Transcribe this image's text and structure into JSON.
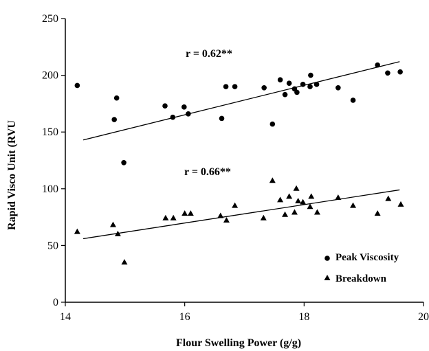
{
  "chart_data": {
    "type": "scatter",
    "title": "",
    "xlabel": "Flour Swelling Power (g/g)",
    "ylabel": "Rapid Visco Unit (RVU",
    "xlim": [
      14,
      20
    ],
    "ylim": [
      0,
      250
    ],
    "x_ticks": [
      14,
      16,
      18,
      20
    ],
    "y_ticks": [
      0,
      50,
      100,
      150,
      200,
      250
    ],
    "grid": false,
    "legend_position": "bottom-right",
    "series": [
      {
        "name": "Peak Viscosity",
        "marker": "circle",
        "points": [
          [
            14.2,
            191
          ],
          [
            14.82,
            161
          ],
          [
            14.86,
            180
          ],
          [
            14.98,
            123
          ],
          [
            15.67,
            173
          ],
          [
            15.8,
            163
          ],
          [
            15.99,
            172
          ],
          [
            16.06,
            166
          ],
          [
            16.62,
            162
          ],
          [
            16.69,
            190
          ],
          [
            16.84,
            190
          ],
          [
            17.33,
            189
          ],
          [
            17.47,
            157
          ],
          [
            17.6,
            196
          ],
          [
            17.68,
            183
          ],
          [
            17.75,
            193
          ],
          [
            17.84,
            188
          ],
          [
            17.88,
            185
          ],
          [
            17.98,
            192
          ],
          [
            18.1,
            190
          ],
          [
            18.11,
            200
          ],
          [
            18.21,
            192
          ],
          [
            18.57,
            189
          ],
          [
            18.82,
            178
          ],
          [
            19.23,
            209
          ],
          [
            19.4,
            202
          ],
          [
            19.61,
            203
          ]
        ],
        "trend": {
          "x": [
            14.3,
            19.6
          ],
          "y": [
            143,
            212
          ]
        },
        "annotation": "r = 0.62**"
      },
      {
        "name": "Breakdown",
        "marker": "triangle",
        "points": [
          [
            14.2,
            62
          ],
          [
            14.8,
            68
          ],
          [
            14.88,
            60
          ],
          [
            14.99,
            35
          ],
          [
            15.68,
            74
          ],
          [
            15.81,
            74
          ],
          [
            16.0,
            78
          ],
          [
            16.1,
            78
          ],
          [
            16.6,
            76
          ],
          [
            16.7,
            72
          ],
          [
            16.84,
            85
          ],
          [
            17.32,
            74
          ],
          [
            17.47,
            107
          ],
          [
            17.6,
            90
          ],
          [
            17.68,
            77
          ],
          [
            17.75,
            93
          ],
          [
            17.84,
            79
          ],
          [
            17.87,
            100
          ],
          [
            17.9,
            89
          ],
          [
            17.98,
            88
          ],
          [
            18.1,
            84
          ],
          [
            18.12,
            93
          ],
          [
            18.22,
            79
          ],
          [
            18.57,
            92
          ],
          [
            18.82,
            85
          ],
          [
            19.23,
            78
          ],
          [
            19.41,
            91
          ],
          [
            19.62,
            86
          ]
        ],
        "trend": {
          "x": [
            14.3,
            19.6
          ],
          "y": [
            56,
            99
          ]
        },
        "annotation": "r = 0.66**"
      }
    ]
  },
  "colors": {
    "ink": "#000000",
    "background": "#ffffff"
  }
}
